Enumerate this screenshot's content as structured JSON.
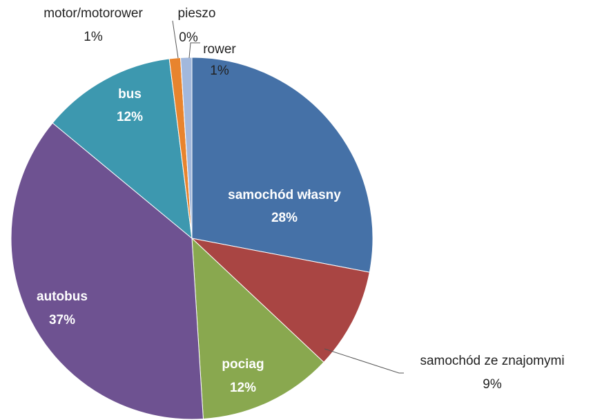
{
  "chart_data": {
    "type": "pie",
    "categories": [
      "samochód własny",
      "samochód ze znajomymi",
      "pociag",
      "autobus",
      "bus",
      "motor/motorower",
      "pieszo",
      "rower"
    ],
    "values": [
      28,
      9,
      12,
      37,
      12,
      1,
      0,
      1
    ],
    "value_labels": [
      "28%",
      "9%",
      "12%",
      "37%",
      "12%",
      "1%",
      "0%",
      "1%"
    ],
    "colors": [
      "#4571a7",
      "#a94543",
      "#89a84f",
      "#6e5291",
      "#3d98af",
      "#e8842e",
      "#7f9fc8",
      "#a2b8dc"
    ]
  }
}
